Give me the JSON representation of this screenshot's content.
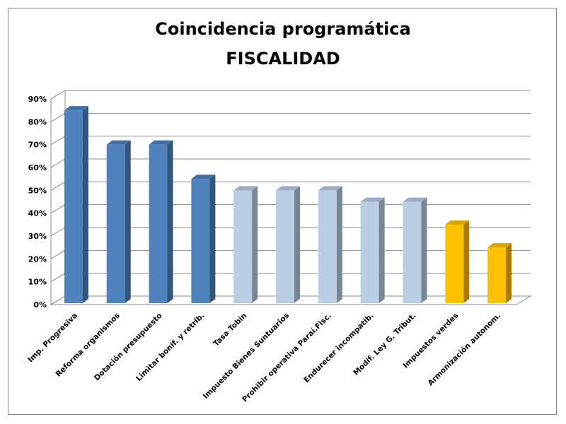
{
  "chart_data": {
    "type": "bar",
    "title": "Coincidencia programática",
    "subtitle": "FISCALIDAD",
    "xlabel": "",
    "ylabel": "",
    "ylim": [
      0,
      0.9
    ],
    "yticks": [
      "0%",
      "10%",
      "20%",
      "30%",
      "40%",
      "50%",
      "60%",
      "70%",
      "80%",
      "90%"
    ],
    "grid": true,
    "legend": "none",
    "style": "3d-column",
    "categories": [
      "Imp. Progresiva",
      "Reforma organismos",
      "Dotación presupuesto",
      "Limitar bonif. y retrib.",
      "Tasa Tobin",
      "Impuesto Bienes Suntuarios",
      "Prohibir operativa Paraí.Fisc.",
      "Endurecer incompatib.",
      "Modif. Ley G. Tribut.",
      "Impuestos verdes",
      "Armonización autonom."
    ],
    "values": [
      0.85,
      0.7,
      0.7,
      0.55,
      0.5,
      0.5,
      0.5,
      0.45,
      0.45,
      0.35,
      0.25
    ],
    "bar_colors": [
      "#4f81bd",
      "#4f81bd",
      "#4f81bd",
      "#4f81bd",
      "#b9cde5",
      "#b9cde5",
      "#b9cde5",
      "#b9cde5",
      "#b9cde5",
      "#ffc000",
      "#ffc000"
    ]
  }
}
